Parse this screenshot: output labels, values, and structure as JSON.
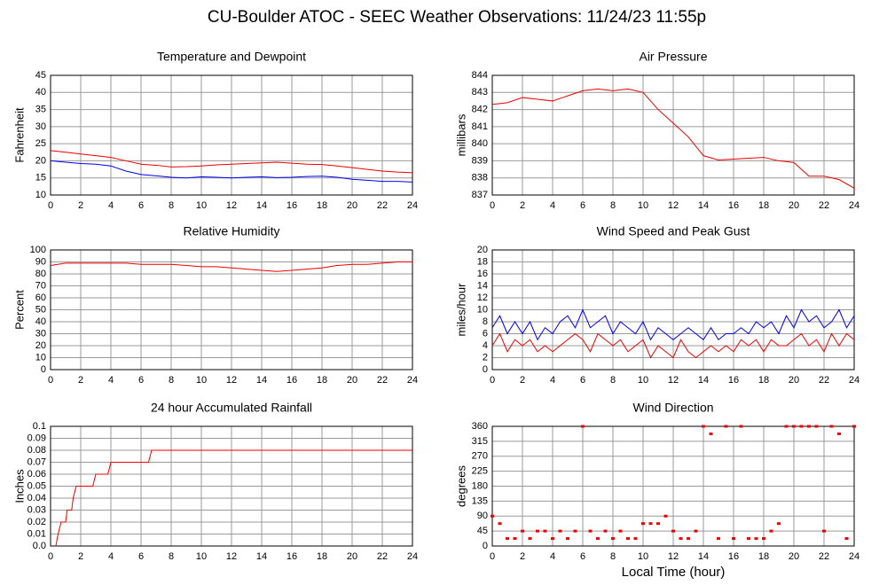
{
  "title": "CU-Boulder ATOC - SEEC Weather Observations: 11/24/23 11:55p",
  "chart_data": [
    {
      "type": "line",
      "title": "Temperature and Dewpoint",
      "ylabel": "Fahrenheit",
      "x": [
        0,
        1,
        2,
        3,
        4,
        5,
        6,
        7,
        8,
        9,
        10,
        11,
        12,
        13,
        14,
        15,
        16,
        17,
        18,
        19,
        20,
        21,
        22,
        23,
        24
      ],
      "series": [
        {
          "color": "#ee0000",
          "values": [
            23,
            22.5,
            22,
            21.5,
            21,
            20,
            19,
            18.7,
            18.2,
            18.3,
            18.5,
            18.8,
            19,
            19.2,
            19.4,
            19.6,
            19.3,
            19,
            18.9,
            18.5,
            18,
            17.5,
            17,
            16.7,
            16.5
          ]
        },
        {
          "color": "#0000ee",
          "values": [
            20,
            19.6,
            19.2,
            19,
            18.5,
            17,
            16,
            15.6,
            15.2,
            15,
            15.3,
            15.2,
            15,
            15.2,
            15.3,
            15.1,
            15.2,
            15.4,
            15.5,
            15.2,
            14.6,
            14.3,
            14,
            14,
            13.8
          ]
        }
      ],
      "xlim": [
        0,
        24
      ],
      "xticks": [
        0,
        2,
        4,
        6,
        8,
        10,
        12,
        14,
        16,
        18,
        20,
        22,
        24
      ],
      "ylim": [
        10,
        45
      ],
      "yticks": [
        10,
        15,
        20,
        25,
        30,
        35,
        40,
        45
      ],
      "grid": true
    },
    {
      "type": "line",
      "title": "Air Pressure",
      "ylabel": "millibars",
      "x": [
        0,
        1,
        2,
        3,
        4,
        5,
        6,
        7,
        8,
        9,
        10,
        11,
        12,
        13,
        14,
        15,
        16,
        17,
        18,
        19,
        20,
        21,
        22,
        23,
        24
      ],
      "series": [
        {
          "color": "#ee0000",
          "values": [
            842.3,
            842.4,
            842.7,
            842.6,
            842.5,
            842.8,
            843.1,
            843.2,
            843.1,
            843.2,
            843.0,
            842.0,
            841.2,
            840.4,
            839.3,
            839.05,
            839.1,
            839.15,
            839.2,
            839.0,
            838.9,
            838.1,
            838.1,
            837.9,
            837.4
          ]
        }
      ],
      "xlim": [
        0,
        24
      ],
      "xticks": [
        0,
        2,
        4,
        6,
        8,
        10,
        12,
        14,
        16,
        18,
        20,
        22,
        24
      ],
      "ylim": [
        837,
        844
      ],
      "yticks": [
        837,
        838,
        839,
        840,
        841,
        842,
        843,
        844
      ],
      "grid": true
    },
    {
      "type": "line",
      "title": "Relative Humidity",
      "ylabel": "Percent",
      "x": [
        0,
        1,
        2,
        3,
        4,
        5,
        6,
        7,
        8,
        9,
        10,
        11,
        12,
        13,
        14,
        15,
        16,
        17,
        18,
        19,
        20,
        21,
        22,
        23,
        24
      ],
      "series": [
        {
          "color": "#ee0000",
          "values": [
            87,
            89,
            89,
            89,
            89,
            89,
            88,
            88,
            88,
            87,
            86,
            86,
            85,
            84,
            83,
            82,
            83,
            84,
            85,
            87,
            88,
            88,
            89,
            90,
            90
          ]
        }
      ],
      "xlim": [
        0,
        24
      ],
      "xticks": [
        0,
        2,
        4,
        6,
        8,
        10,
        12,
        14,
        16,
        18,
        20,
        22,
        24
      ],
      "ylim": [
        0,
        100
      ],
      "yticks": [
        0,
        10,
        20,
        30,
        40,
        50,
        60,
        70,
        80,
        90,
        100
      ],
      "grid": true
    },
    {
      "type": "line",
      "title": "Wind Speed and Peak Gust",
      "ylabel": "miles/hour",
      "x": [
        0,
        0.5,
        1,
        1.5,
        2,
        2.5,
        3,
        3.5,
        4,
        4.5,
        5,
        5.5,
        6,
        6.5,
        7,
        7.5,
        8,
        8.5,
        9,
        9.5,
        10,
        10.5,
        11,
        11.5,
        12,
        12.5,
        13,
        13.5,
        14,
        14.5,
        15,
        15.5,
        16,
        16.5,
        17,
        17.5,
        18,
        18.5,
        19,
        19.5,
        20,
        20.5,
        21,
        21.5,
        22,
        22.5,
        23,
        23.5,
        24
      ],
      "series": [
        {
          "color": "#0000ee",
          "values": [
            7,
            9,
            6,
            8,
            6,
            8,
            5,
            7,
            6,
            8,
            9,
            7,
            10,
            7,
            8,
            9,
            6,
            8,
            7,
            6,
            8,
            5,
            7,
            6,
            5,
            6,
            7,
            6,
            5,
            7,
            5,
            6,
            6,
            7,
            6,
            8,
            7,
            8,
            6,
            9,
            7,
            10,
            8,
            9,
            7,
            8,
            10,
            7,
            9
          ]
        },
        {
          "color": "#ee0000",
          "values": [
            4,
            6,
            3,
            5,
            4,
            5,
            3,
            4,
            3,
            4,
            5,
            6,
            5,
            3,
            6,
            5,
            4,
            5,
            3,
            4,
            5,
            2,
            4,
            3,
            2,
            5,
            3,
            2,
            3,
            4,
            3,
            4,
            3,
            5,
            4,
            5,
            3,
            5,
            4,
            4,
            5,
            6,
            4,
            5,
            3,
            6,
            4,
            6,
            5
          ]
        }
      ],
      "xlim": [
        0,
        24
      ],
      "xticks": [
        0,
        2,
        4,
        6,
        8,
        10,
        12,
        14,
        16,
        18,
        20,
        22,
        24
      ],
      "ylim": [
        0,
        20
      ],
      "yticks": [
        0,
        2,
        4,
        6,
        8,
        10,
        12,
        14,
        16,
        18,
        20
      ],
      "grid": true
    },
    {
      "type": "line",
      "title": "24 hour Accumulated Rainfall",
      "ylabel": "Inches",
      "x": [
        0.35,
        0.5,
        0.7,
        1.0,
        1.1,
        1.4,
        1.5,
        1.7,
        2.8,
        3.0,
        3.8,
        4.0,
        6.5,
        6.7,
        24
      ],
      "series": [
        {
          "color": "#ee0000",
          "values": [
            0,
            0.01,
            0.02,
            0.02,
            0.03,
            0.03,
            0.04,
            0.05,
            0.05,
            0.06,
            0.06,
            0.07,
            0.07,
            0.08,
            0.08
          ]
        }
      ],
      "xlim": [
        0,
        24
      ],
      "xticks": [
        0,
        2,
        4,
        6,
        8,
        10,
        12,
        14,
        16,
        18,
        20,
        22,
        24
      ],
      "ylim": [
        0,
        0.1
      ],
      "yticks": [
        {
          "value": 0,
          "label": "0.0"
        },
        0.01,
        0.02,
        0.03,
        0.04,
        0.05,
        0.06,
        0.07,
        0.08,
        0.09,
        0.1
      ],
      "grid": true
    },
    {
      "type": "scatter",
      "title": "Wind Direction",
      "ylabel": "degrees",
      "xlabel": "Local Time (hour)",
      "x": [
        0,
        0.5,
        1,
        1.5,
        2,
        2.5,
        3,
        3.5,
        4,
        4.5,
        5,
        5.5,
        6,
        6.5,
        7,
        7.5,
        8,
        8.5,
        9,
        9.5,
        10,
        10.5,
        11,
        11.5,
        12,
        12.5,
        13,
        13.5,
        14,
        14.5,
        15,
        15.5,
        16,
        16.5,
        17,
        17.5,
        18,
        18.5,
        19,
        19.5,
        20,
        20.5,
        21,
        21.5,
        22,
        22.5,
        23,
        23.5,
        24
      ],
      "series": [
        {
          "color": "#ee0000",
          "values": [
            90,
            67.5,
            22.5,
            22.5,
            45,
            22.5,
            45,
            45,
            22.5,
            45,
            22.5,
            45,
            360,
            45,
            22.5,
            45,
            22.5,
            45,
            22.5,
            22.5,
            67.5,
            67.5,
            67.5,
            90,
            45,
            22.5,
            22.5,
            45,
            360,
            337.5,
            22.5,
            360,
            22.5,
            360,
            22.5,
            22.5,
            22.5,
            45,
            67.5,
            360,
            360,
            360,
            360,
            360,
            45,
            360,
            337.5,
            22.5,
            360
          ]
        }
      ],
      "xlim": [
        0,
        24
      ],
      "xticks": [
        0,
        2,
        4,
        6,
        8,
        10,
        12,
        14,
        16,
        18,
        20,
        22,
        24
      ],
      "ylim": [
        0,
        360
      ],
      "yticks": [
        0,
        45,
        90,
        135,
        180,
        225,
        270,
        315,
        360
      ],
      "grid": true
    }
  ]
}
